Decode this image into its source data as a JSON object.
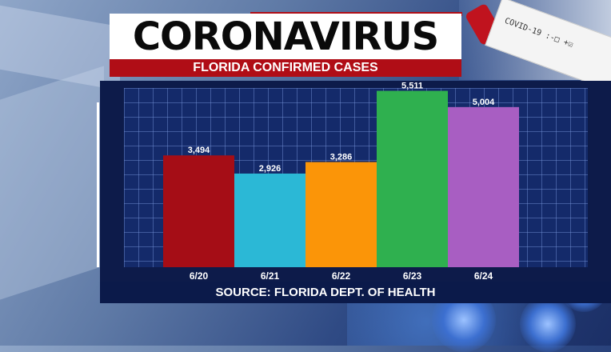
{
  "header": {
    "title": "CORONAVIRUS",
    "subtitle": "FLORIDA CONFIRMED CASES"
  },
  "footer": {
    "source": "SOURCE: FLORIDA DEPT. OF HEALTH"
  },
  "decor": {
    "test_card_text": "COVID-19 :-□ +☑"
  },
  "colors": {
    "title_red": "#b00d16",
    "panel_navy": "#0d1b4a"
  },
  "chart_data": {
    "type": "bar",
    "title": "",
    "xlabel": "",
    "ylabel": "",
    "grid": true,
    "ylim": [
      0,
      5700
    ],
    "categories": [
      "6/20",
      "6/21",
      "6/22",
      "6/23",
      "6/24"
    ],
    "values": [
      3494,
      2926,
      3286,
      5511,
      5004
    ],
    "value_labels": [
      "3,494",
      "2,926",
      "3,286",
      "5,511",
      "5,004"
    ],
    "bar_colors": [
      "#a50d16",
      "#2bb8d6",
      "#fb9508",
      "#2fb04f",
      "#a85ec2"
    ]
  }
}
